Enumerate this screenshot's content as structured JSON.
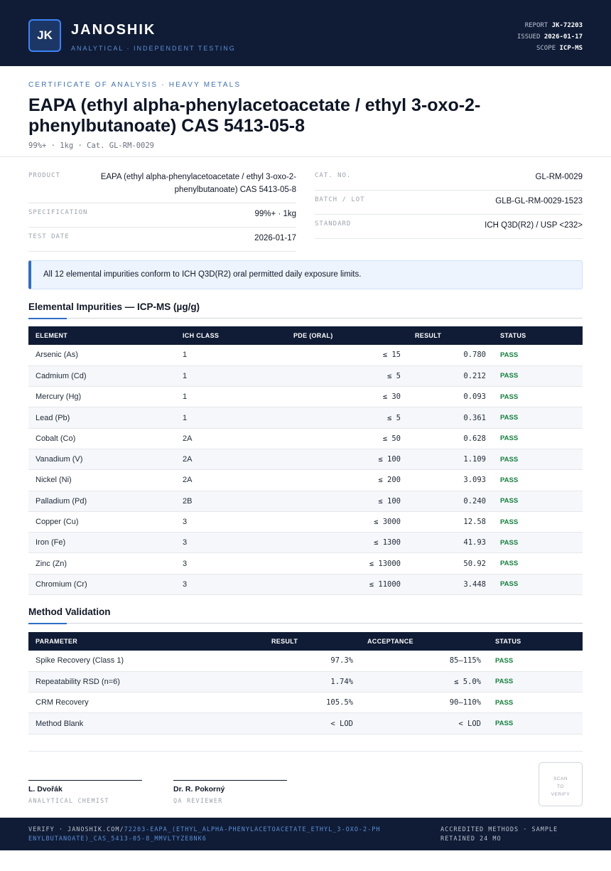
{
  "header": {
    "logo": "JK",
    "brand": "JANOSHIK",
    "tagline": "ANALYTICAL · INDEPENDENT TESTING",
    "meta": [
      {
        "label": "REPORT",
        "value": "JK-72203"
      },
      {
        "label": "ISSUED",
        "value": "2026-01-17"
      },
      {
        "label": "SCOPE",
        "value": "ICP-MS"
      }
    ]
  },
  "certificate": {
    "kicker": "CERTIFICATE OF ANALYSIS · HEAVY METALS",
    "title": "EAPA (ethyl alpha-phenylacetoacetate / ethyl 3-oxo-2-phenylbutanoate) CAS 5413-05-8",
    "subtitle": "99%+ · 1kg · Cat. GL-RM-0029"
  },
  "info": {
    "left": [
      {
        "label": "PRODUCT",
        "value": "EAPA (ethyl alpha-phenylacetoacetate / ethyl 3-oxo-2-phenylbutanoate) CAS 5413-05-8"
      },
      {
        "label": "SPECIFICATION",
        "value": "99%+ · 1kg"
      },
      {
        "label": "TEST DATE",
        "value": "2026-01-17"
      }
    ],
    "right": [
      {
        "label": "CAT. NO.",
        "value": "GL-RM-0029"
      },
      {
        "label": "BATCH / LOT",
        "value": "GLB-GL-RM-0029-1523"
      },
      {
        "label": "STANDARD",
        "value": "ICH Q3D(R2) / USP <232>"
      }
    ]
  },
  "notice": "All 12 elemental impurities conform to ICH Q3D(R2) oral permitted daily exposure limits.",
  "impurities": {
    "title": "Elemental Impurities — ICP-MS (µg/g)",
    "columns": [
      "ELEMENT",
      "ICH CLASS",
      "PDE (ORAL)",
      "RESULT",
      "STATUS"
    ],
    "rows": [
      [
        "Arsenic (As)",
        "1",
        "≤ 15",
        "0.780",
        "PASS"
      ],
      [
        "Cadmium (Cd)",
        "1",
        "≤ 5",
        "0.212",
        "PASS"
      ],
      [
        "Mercury (Hg)",
        "1",
        "≤ 30",
        "0.093",
        "PASS"
      ],
      [
        "Lead (Pb)",
        "1",
        "≤ 5",
        "0.361",
        "PASS"
      ],
      [
        "Cobalt (Co)",
        "2A",
        "≤ 50",
        "0.628",
        "PASS"
      ],
      [
        "Vanadium (V)",
        "2A",
        "≤ 100",
        "1.109",
        "PASS"
      ],
      [
        "Nickel (Ni)",
        "2A",
        "≤ 200",
        "3.093",
        "PASS"
      ],
      [
        "Palladium (Pd)",
        "2B",
        "≤ 100",
        "0.240",
        "PASS"
      ],
      [
        "Copper (Cu)",
        "3",
        "≤ 3000",
        "12.58",
        "PASS"
      ],
      [
        "Iron (Fe)",
        "3",
        "≤ 1300",
        "41.93",
        "PASS"
      ],
      [
        "Zinc (Zn)",
        "3",
        "≤ 13000",
        "50.92",
        "PASS"
      ],
      [
        "Chromium (Cr)",
        "3",
        "≤ 11000",
        "3.448",
        "PASS"
      ]
    ]
  },
  "validation": {
    "title": "Method Validation",
    "columns": [
      "PARAMETER",
      "RESULT",
      "ACCEPTANCE",
      "STATUS"
    ],
    "rows": [
      [
        "Spike Recovery (Class 1)",
        "97.3%",
        "85–115%",
        "PASS"
      ],
      [
        "Repeatability RSD (n=6)",
        "1.74%",
        "≤ 5.0%",
        "PASS"
      ],
      [
        "CRM Recovery",
        "105.5%",
        "90–110%",
        "PASS"
      ],
      [
        "Method Blank",
        "< LOD",
        "< LOD",
        "PASS"
      ]
    ]
  },
  "signatures": [
    {
      "name": "L. Dvořák",
      "role": "ANALYTICAL CHEMIST"
    },
    {
      "name": "Dr. R. Pokorný",
      "role": "QA REVIEWER"
    }
  ],
  "qr": "SCAN TO VERIFY",
  "footer": {
    "verify": "VERIFY · JANOSHIK.COM/",
    "link": "72203-EAPA_(ETHYL_ALPHA-PHENYLACETOACETATE_ETHYL_3-OXO-2-PHENYLBUTANOATE)_CAS_5413-05-8_MMVLTYZE8NK6",
    "note": "ACCREDITED METHODS · SAMPLE RETAINED 24 MO"
  }
}
